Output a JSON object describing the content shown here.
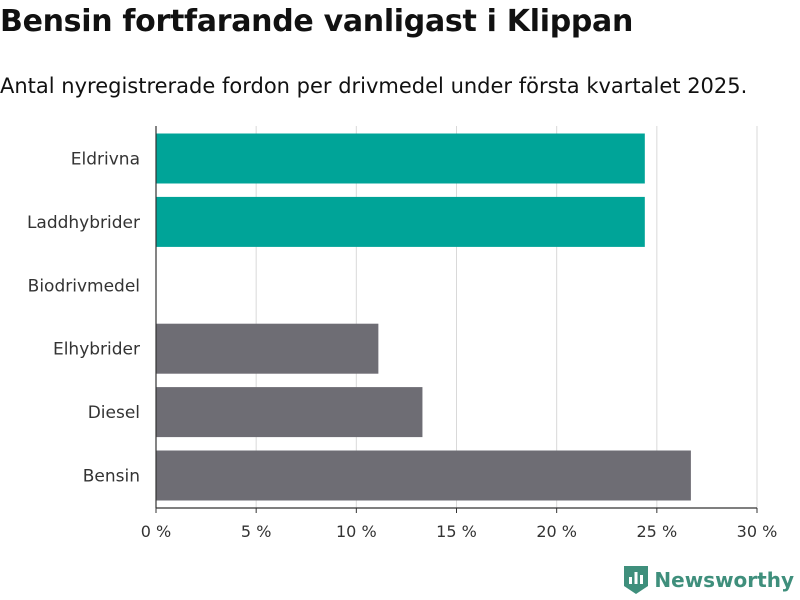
{
  "title": "Bensin fortfarande vanligast i Klippan",
  "subtitle": "Antal nyregistrerade fordon per drivmedel under första kvartalet 2025.",
  "brand": {
    "name": "Newsworthy",
    "icon": "newsworthy-logo-icon",
    "color": "#3f8f7c"
  },
  "chart_data": {
    "type": "bar",
    "orientation": "horizontal",
    "categories": [
      "Eldrivna",
      "Laddhybrider",
      "Biodrivmedel",
      "Elhybrider",
      "Diesel",
      "Bensin"
    ],
    "values": [
      24.4,
      24.4,
      0,
      11.1,
      13.3,
      26.7
    ],
    "colors": [
      "#00a498",
      "#00a498",
      "#00a498",
      "#6e6d74",
      "#6e6d74",
      "#6e6d74"
    ],
    "xlim": [
      0,
      30
    ],
    "xticks": [
      0,
      5,
      10,
      15,
      20,
      25,
      30
    ],
    "tick_labels": [
      "0 %",
      "5 %",
      "10 %",
      "15 %",
      "20 %",
      "25 %",
      "30 %"
    ],
    "grid": "vertical",
    "xlabel": "",
    "ylabel": ""
  }
}
